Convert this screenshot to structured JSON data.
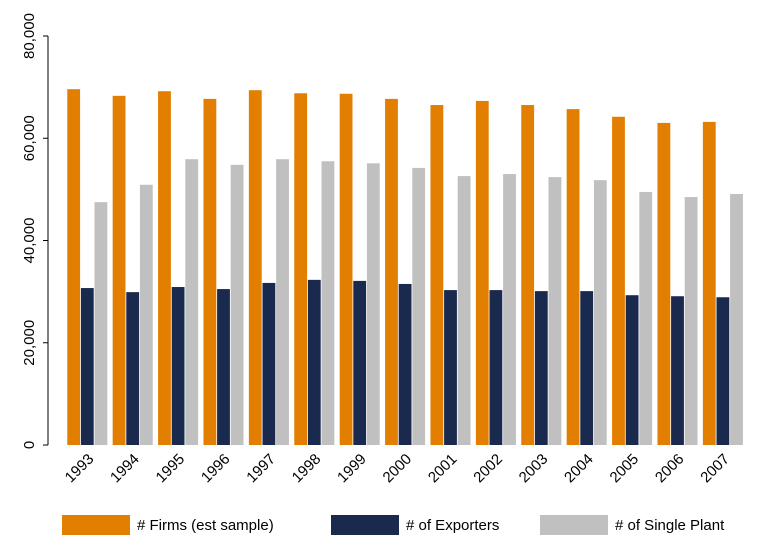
{
  "chart_data": {
    "type": "bar",
    "categories": [
      "1993",
      "1994",
      "1995",
      "1996",
      "1997",
      "1998",
      "1999",
      "2000",
      "2001",
      "2002",
      "2003",
      "2004",
      "2005",
      "2006",
      "2007"
    ],
    "series": [
      {
        "name": "# Firms (est sample)",
        "color": "#e37f00",
        "values": [
          69600,
          68300,
          69200,
          67700,
          69400,
          68800,
          68700,
          67700,
          66500,
          67300,
          66500,
          65700,
          64200,
          63000,
          63200
        ]
      },
      {
        "name": "# of Exporters",
        "color": "#1a2a4f",
        "values": [
          30700,
          29900,
          30900,
          30500,
          31700,
          32300,
          32100,
          31500,
          30300,
          30300,
          30100,
          30100,
          29300,
          29100,
          28900
        ]
      },
      {
        "name": "# of Single Plant",
        "color": "#c0c0c0",
        "values": [
          47500,
          50900,
          55900,
          54800,
          55900,
          55500,
          55100,
          54200,
          52600,
          53000,
          52400,
          51800,
          49500,
          48500,
          49100
        ]
      }
    ],
    "ylim": [
      0,
      80000
    ],
    "yticks": [
      0,
      {
        "value": 20000,
        "label": "20,000"
      },
      {
        "value": 40000,
        "label": "40,000"
      },
      {
        "value": 60000,
        "label": "60,000"
      },
      {
        "value": 80000,
        "label": "80,000"
      }
    ],
    "legend": "bottom"
  }
}
